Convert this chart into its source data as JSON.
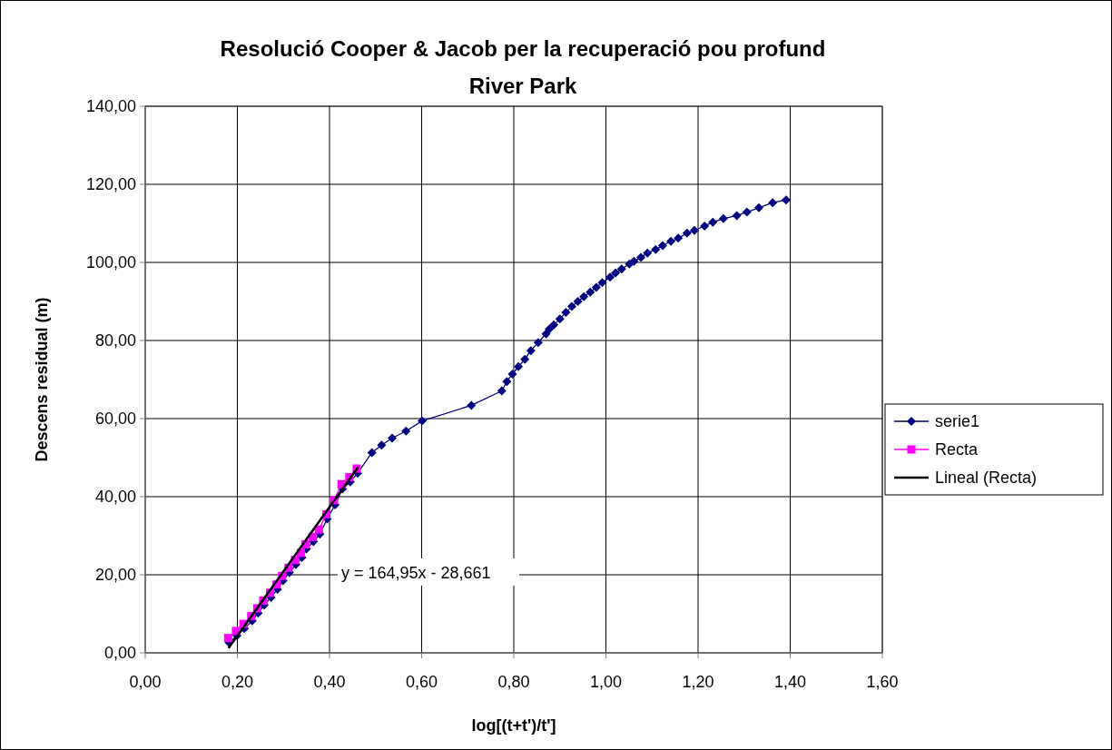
{
  "chart_data": {
    "type": "line",
    "title": "Resolució Cooper & Jacob per la recuperació pou profund",
    "subtitle": "River Park",
    "xlabel": "log[(t+t')/t']",
    "ylabel": "Descens residual (m)",
    "xlim": [
      0,
      1.6
    ],
    "ylim": [
      0,
      140
    ],
    "xticks": [
      {
        "value": 0,
        "label": "0,00"
      },
      {
        "value": 0.2,
        "label": "0,20"
      },
      {
        "value": 0.4,
        "label": "0,40"
      },
      {
        "value": 0.6,
        "label": "0,60"
      },
      {
        "value": 0.8,
        "label": "0,80"
      },
      {
        "value": 1,
        "label": "1,00"
      },
      {
        "value": 1.2,
        "label": "1,20"
      },
      {
        "value": 1.4,
        "label": "1,40"
      },
      {
        "value": 1.6,
        "label": "1,60"
      }
    ],
    "yticks": [
      {
        "value": 0,
        "label": "0,00"
      },
      {
        "value": 20,
        "label": "20,00"
      },
      {
        "value": 40,
        "label": "40,00"
      },
      {
        "value": 60,
        "label": "60,00"
      },
      {
        "value": 80,
        "label": "80,00"
      },
      {
        "value": 100,
        "label": "100,00"
      },
      {
        "value": 120,
        "label": "120,00"
      },
      {
        "value": 140,
        "label": "140,00"
      }
    ],
    "grid": true,
    "legend": "right",
    "annotations": [
      "y = 164,95x - 28,661"
    ],
    "series": [
      {
        "name": "serie1",
        "color": "#000080",
        "marker": "diamond",
        "line_style": "solid",
        "x": [
          0.182,
          0.199,
          0.215,
          0.232,
          0.245,
          0.258,
          0.273,
          0.287,
          0.299,
          0.313,
          0.327,
          0.34,
          0.35,
          0.365,
          0.379,
          0.395,
          0.412,
          0.428,
          0.445,
          0.461,
          0.492,
          0.513,
          0.536,
          0.566,
          0.601,
          0.708,
          0.774,
          0.785,
          0.797,
          0.81,
          0.824,
          0.837,
          0.853,
          0.87,
          0.877,
          0.887,
          0.9,
          0.913,
          0.926,
          0.939,
          0.952,
          0.966,
          0.979,
          0.992,
          1.009,
          1.021,
          1.034,
          1.051,
          1.061,
          1.076,
          1.09,
          1.108,
          1.123,
          1.141,
          1.157,
          1.176,
          1.192,
          1.214,
          1.232,
          1.255,
          1.284,
          1.306,
          1.332,
          1.362,
          1.391
        ],
        "values": [
          2.6,
          4.4,
          6.2,
          8.2,
          10.2,
          12.2,
          14.2,
          16.3,
          18.5,
          20.6,
          22.6,
          24.4,
          26.6,
          28.5,
          30.4,
          34.3,
          37.9,
          42.0,
          43.8,
          46.0,
          51.3,
          53.2,
          55.0,
          56.8,
          59.4,
          63.4,
          67.1,
          69.5,
          71.4,
          73.3,
          75.2,
          77.4,
          79.5,
          81.7,
          82.9,
          84.0,
          85.5,
          87.2,
          88.7,
          90.0,
          91.2,
          92.4,
          93.6,
          94.8,
          96.2,
          97.3,
          98.3,
          99.6,
          100.3,
          101.3,
          102.4,
          103.3,
          104.3,
          105.4,
          106.2,
          107.5,
          108.2,
          109.3,
          110.3,
          111.2,
          112.0,
          112.9,
          114.0,
          115.3,
          116.0
        ]
      },
      {
        "name": "Recta",
        "color": "#ff00ff",
        "marker": "square",
        "line_style": "solid",
        "x": [
          0.18,
          0.197,
          0.213,
          0.23,
          0.243,
          0.256,
          0.271,
          0.285,
          0.297,
          0.311,
          0.325,
          0.338,
          0.348,
          0.363,
          0.377,
          0.393,
          0.41,
          0.426,
          0.443,
          0.459
        ],
        "values": [
          3.8,
          5.6,
          7.4,
          9.4,
          11.4,
          13.4,
          15.4,
          17.5,
          19.7,
          21.8,
          23.8,
          25.6,
          27.8,
          29.7,
          31.6,
          35.5,
          39.1,
          43.2,
          45.0,
          47.2
        ]
      },
      {
        "name": "Lineal (Recta)",
        "color": "#000000",
        "marker": "none",
        "line_style": "solid",
        "x": [
          0.182,
          0.461
        ],
        "values": [
          1.4,
          47.4
        ]
      }
    ]
  }
}
